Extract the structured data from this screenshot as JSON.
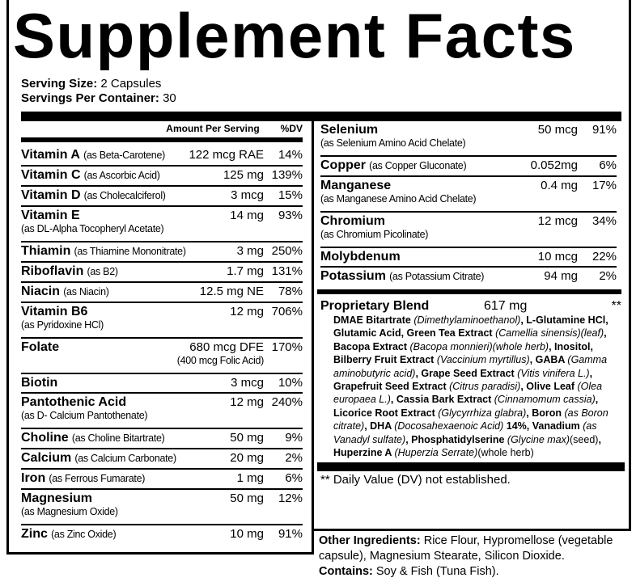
{
  "title": "Supplement Facts",
  "serving": {
    "size_label": "Serving Size:",
    "size_value": "2 Capsules",
    "per_label": "Servings Per Container:",
    "per_value": "30"
  },
  "header": {
    "amount": "Amount Per Serving",
    "dv": "%DV"
  },
  "left": [
    {
      "name": "Vitamin A",
      "source": "(as Beta-Carotene)",
      "amount": "122 mcg RAE",
      "dv": "14%",
      "two": false
    },
    {
      "name": "Vitamin C",
      "source": "(as Ascorbic Acid)",
      "amount": "125 mg",
      "dv": "139%",
      "two": false
    },
    {
      "name": "Vitamin D",
      "source": "(as Cholecalciferol)",
      "amount": "3 mcg",
      "dv": "15%",
      "two": false
    },
    {
      "name": "Vitamin E",
      "source": "(as DL-Alpha Tocopheryl Acetate)",
      "amount": "14 mg",
      "dv": "93%",
      "two": true
    },
    {
      "name": "Thiamin",
      "source": "(as Thiamine Mononitrate)",
      "amount": "3 mg",
      "dv": "250%",
      "two": false
    },
    {
      "name": "Riboflavin",
      "source": "(as B2)",
      "amount": "1.7 mg",
      "dv": "131%",
      "two": false
    },
    {
      "name": "Niacin",
      "source": "(as Niacin)",
      "amount": "12.5 mg NE",
      "dv": "78%",
      "two": false
    },
    {
      "name": "Vitamin B6",
      "source": "(as Pyridoxine HCl)",
      "amount": "12 mg",
      "dv": "706%",
      "two": true
    },
    {
      "name": "Folate",
      "source": "",
      "amount": "680 mcg DFE",
      "amount_sub": "(400 mcg Folic Acid)",
      "dv": "170%",
      "two": true
    },
    {
      "name": "Biotin",
      "source": "",
      "amount": "3 mcg",
      "dv": "10%",
      "two": false
    },
    {
      "name": "Pantothenic Acid",
      "source": "(as D- Calcium Pantothenate)",
      "amount": "12 mg",
      "dv": "240%",
      "two": true
    },
    {
      "name": "Choline",
      "source": "(as Choline Bitartrate)",
      "amount": "50 mg",
      "dv": "9%",
      "two": false
    },
    {
      "name": "Calcium",
      "source": "(as Calcium Carbonate)",
      "amount": "20 mg",
      "dv": "2%",
      "two": false
    },
    {
      "name": "Iron",
      "source": "(as Ferrous Fumarate)",
      "amount": "1 mg",
      "dv": "6%",
      "two": false
    },
    {
      "name": "Magnesium",
      "source": "(as Magnesium Oxide)",
      "amount": "50 mg",
      "dv": "12%",
      "two": true
    },
    {
      "name": "Zinc",
      "source": "(as Zinc Oxide)",
      "amount": "10 mg",
      "dv": "91%",
      "two": false
    }
  ],
  "right": [
    {
      "name": "Selenium",
      "source": "(as Selenium Amino Acid Chelate)",
      "amount": "50 mcg",
      "dv": "91%",
      "two": true
    },
    {
      "name": "Copper",
      "source": "(as Copper Gluconate)",
      "amount": "0.052mg",
      "dv": "6%",
      "two": false
    },
    {
      "name": "Manganese",
      "source": "(as Manganese Amino Acid Chelate)",
      "amount": "0.4 mg",
      "dv": "17%",
      "two": true
    },
    {
      "name": "Chromium",
      "source": "(as Chromium Picolinate)",
      "amount": "12 mcg",
      "dv": "34%",
      "two": true
    },
    {
      "name": "Molybdenum",
      "source": "",
      "amount": "10 mcg",
      "dv": "22%",
      "two": false
    },
    {
      "name": "Potassium",
      "source": "(as Potassium Citrate)",
      "amount": "94 mg",
      "dv": "2%",
      "two": false
    }
  ],
  "blend": {
    "name": "Proprietary Blend",
    "amount": "617 mg",
    "dv": "**",
    "parts": [
      [
        "b",
        "DMAE Bitartrate "
      ],
      [
        "i",
        "(Dimethylaminoethanol)"
      ],
      [
        "b",
        ", L-Glutamine HCl, Glutamic Acid, Green Tea Extract "
      ],
      [
        "i",
        "(Camellia sinensis)(leaf)"
      ],
      [
        "b",
        ", Bacopa Extract "
      ],
      [
        "i",
        "(Bacopa monnieri)(whole herb)"
      ],
      [
        "b",
        ", Inositol, Bilberry Fruit Extract "
      ],
      [
        "i",
        "(Vaccinium myrtillus)"
      ],
      [
        "b",
        ", GABA "
      ],
      [
        "i",
        "(Gamma aminobutyric acid)"
      ],
      [
        "b",
        ", Grape Seed Extract "
      ],
      [
        "i",
        "(Vitis vinifera L.)"
      ],
      [
        "b",
        ", Grapefruit Seed Extract "
      ],
      [
        "i",
        "(Citrus paradisi)"
      ],
      [
        "b",
        ", Olive Leaf "
      ],
      [
        "i",
        "(Olea europaea L.)"
      ],
      [
        "b",
        ", Cassia Bark Extract "
      ],
      [
        "i",
        "(Cinnamomum cassia)"
      ],
      [
        "b",
        ", Licorice Root Extract "
      ],
      [
        "i",
        "(Glycyrrhiza glabra)"
      ],
      [
        "b",
        ", Boron "
      ],
      [
        "i",
        "(as Boron citrate)"
      ],
      [
        "b",
        ", DHA "
      ],
      [
        "i",
        "(Docosahexaenoic Acid) "
      ],
      [
        "b",
        "14%, Vanadium "
      ],
      [
        "i",
        "(as Vanadyl sulfate)"
      ],
      [
        "b",
        ", Phosphatidylserine "
      ],
      [
        "i",
        "(Glycine max)"
      ],
      [
        "n",
        "(seed)"
      ],
      [
        "b",
        ", Huperzine A "
      ],
      [
        "i",
        "(Huperzia Serrate)"
      ],
      [
        "n",
        "(whole herb)"
      ]
    ]
  },
  "footnote": "** Daily Value (DV) not established.",
  "other": {
    "label": "Other Ingredients:",
    "value": " Rice Flour, Hypromellose (vegetable capsule), Magnesium Stearate, Silicon Dioxide.",
    "contains_label": "Contains:",
    "contains_value": " Soy & Fish (Tuna Fish)."
  }
}
